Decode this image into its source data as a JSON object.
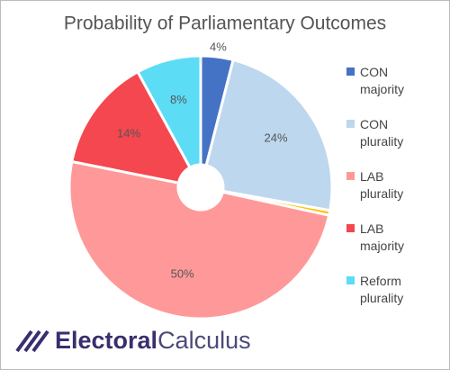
{
  "chart_data": {
    "type": "pie",
    "title": "Probability of Parliamentary Outcomes",
    "categories": [
      "CON majority",
      "CON plurality",
      null,
      "LAB plurality",
      "LAB majority",
      "Reform plurality"
    ],
    "values": [
      4,
      24,
      0.6,
      50,
      14,
      8
    ],
    "value_labels": [
      "4%",
      "24%",
      null,
      "50%",
      "14%",
      "8%"
    ],
    "colors": [
      "#4472c4",
      "#bdd7ee",
      "#ffc000",
      "#ff9999",
      "#f4474f",
      "#5ddcf6"
    ],
    "legend": "right"
  },
  "logo": {
    "bold": "Electoral",
    "light": "Calculus"
  }
}
